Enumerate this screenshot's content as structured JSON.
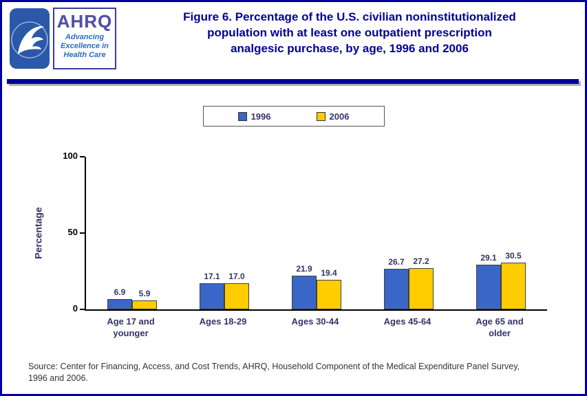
{
  "header": {
    "title_line1": "Figure 6. Percentage of the U.S. civilian noninstitutionalized",
    "title_line2": "population with at least one outpatient prescription",
    "title_line3": "analgesic purchase, by age, 1996 and 2006",
    "ahrq": {
      "acronym": "AHRQ",
      "tagline1": "Advancing",
      "tagline2": "Excellence in",
      "tagline3": "Health Care"
    }
  },
  "chart_data": {
    "type": "bar",
    "title": "Figure 6. Percentage of the U.S. civilian noninstitutionalized population with at least one outpatient prescription analgesic purchase, by age, 1996 and 2006",
    "categories": [
      "Age 17 and younger",
      "Ages 18-29",
      "Ages 30-44",
      "Ages 45-64",
      "Age 65 and older"
    ],
    "series": [
      {
        "name": "1996",
        "color": "#3a66c8",
        "values": [
          6.9,
          17.1,
          21.9,
          26.7,
          29.1
        ]
      },
      {
        "name": "2006",
        "color": "#ffcc00",
        "values": [
          5.9,
          17.0,
          19.4,
          27.2,
          30.5
        ]
      }
    ],
    "xlabel": "",
    "ylabel": "Percentage",
    "ylim": [
      0,
      100
    ],
    "yticks": [
      0,
      50,
      100
    ],
    "grid": false,
    "legend_position": "top-center"
  },
  "source": {
    "line1": "Source: Center for Financing, Access, and Cost Trends, AHRQ, Household Component of the Medical Expenditure Panel Survey,",
    "line2": "1996 and 2006."
  },
  "colors": {
    "page_border": "#0000a0",
    "title_text": "#000099",
    "axis_text": "#333366",
    "divider": "#000099"
  }
}
